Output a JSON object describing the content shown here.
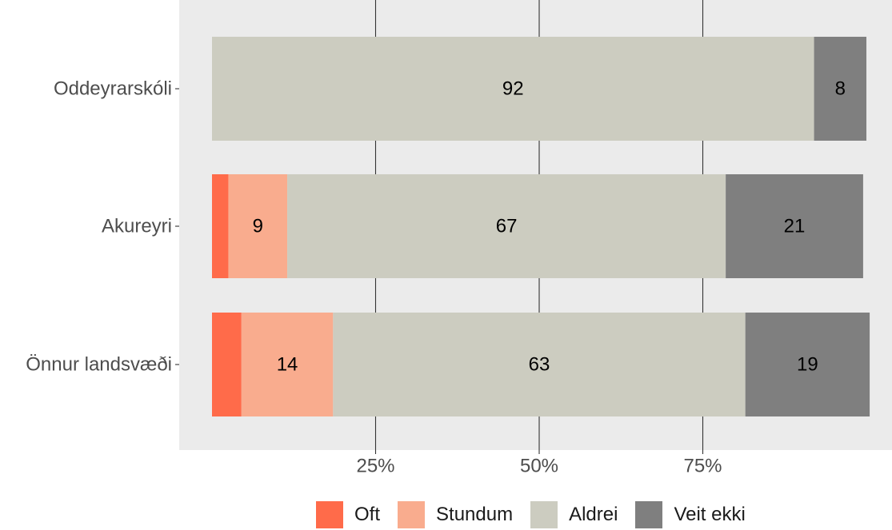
{
  "chart_data": {
    "type": "bar",
    "orientation": "horizontal",
    "stacked": true,
    "categories": [
      "Oddeyrarskóli",
      "Akureyri",
      "Önnur landsvæði"
    ],
    "series": [
      {
        "name": "Oft",
        "color": "#FF6B4A",
        "values": [
          0,
          2.5,
          4.5
        ],
        "labels": [
          "",
          "",
          ""
        ]
      },
      {
        "name": "Stundum",
        "color": "#F9AC8E",
        "values": [
          0,
          9,
          14
        ],
        "labels": [
          "",
          "9",
          "14"
        ]
      },
      {
        "name": "Aldrei",
        "color": "#CCCCC0",
        "values": [
          92,
          67,
          63
        ],
        "labels": [
          "92",
          "67",
          "63"
        ]
      },
      {
        "name": "Veit ekki",
        "color": "#7F7F7F",
        "values": [
          8,
          21,
          19
        ],
        "labels": [
          "8",
          "21",
          "19"
        ]
      }
    ],
    "xlim": [
      0,
      100
    ],
    "xticks": [
      25,
      50,
      75
    ],
    "xtick_labels": [
      "25%",
      "50%",
      "75%"
    ],
    "grid": "vertical-major",
    "panel_background": "#EBEBEB",
    "grid_color": "#333333",
    "legend_position": "bottom",
    "title": "",
    "xlabel": "",
    "ylabel": ""
  }
}
